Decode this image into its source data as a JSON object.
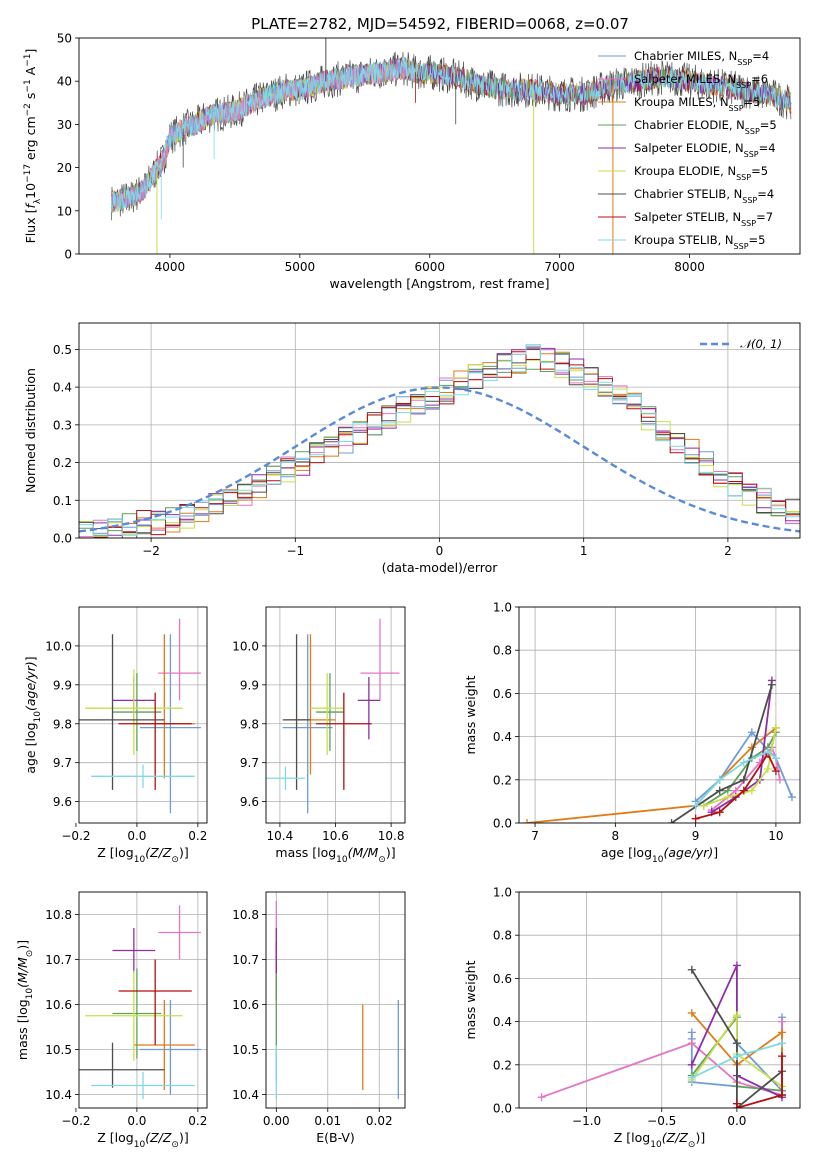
{
  "figure": {
    "title": "PLATE=2782, MJD=54592, FIBERID=0068, z=0.07"
  },
  "colors": {
    "Chabrier MILES": "#6f9bd8",
    "Salpeter MILES": "#e377c2",
    "Kroupa MILES": "#e07b1a",
    "Chabrier ELODIE": "#5f9f5f",
    "Salpeter ELODIE": "#8e2ea6",
    "Kroupa ELODIE": "#c7e04a",
    "Chabrier STELIB": "#4d4d4d",
    "Salpeter STELIB": "#b50f0f",
    "Kroupa STELIB": "#7fd9e6"
  },
  "chart_data": [
    {
      "type": "line",
      "title": "PLATE=2782, MJD=54592, FIBERID=0068, z=0.07",
      "xlabel": "wavelength [Angstrom, rest frame]",
      "ylabel": "Flux [f_λ 10^-17 erg cm^-2 s^-1 A^-1]",
      "xlim": [
        3300,
        8850
      ],
      "ylim": [
        0,
        50
      ],
      "xticks": [
        "4000",
        "5000",
        "6000",
        "7000",
        "8000"
      ],
      "yticks": [
        "0",
        "10",
        "20",
        "30",
        "40",
        "50"
      ],
      "grid": false,
      "legend_position": "top-right",
      "legend": [
        {
          "name": "Chabrier MILES",
          "nssp": "4"
        },
        {
          "name": "Salpeter MILES",
          "nssp": "6"
        },
        {
          "name": "Kroupa MILES",
          "nssp": "5"
        },
        {
          "name": "Chabrier ELODIE",
          "nssp": "5"
        },
        {
          "name": "Salpeter ELODIE",
          "nssp": "4"
        },
        {
          "name": "Kroupa ELODIE",
          "nssp": "5"
        },
        {
          "name": "Chabrier STELIB",
          "nssp": "4"
        },
        {
          "name": "Salpeter STELIB",
          "nssp": "7"
        },
        {
          "name": "Kroupa STELIB",
          "nssp": "5"
        }
      ],
      "continuum": {
        "x": [
          3550,
          3700,
          3800,
          3950,
          4000,
          4100,
          4200,
          4300,
          4500,
          4700,
          4900,
          5000,
          5200,
          5400,
          5600,
          5800,
          5900,
          6000,
          6200,
          6400,
          6600,
          6800,
          7000,
          7200,
          7400,
          7600,
          7800,
          8000,
          8200,
          8400,
          8600,
          8780
        ],
        "y": [
          12,
          13,
          15,
          22,
          27,
          29,
          30,
          32,
          33,
          36,
          38,
          38,
          40,
          41,
          42,
          43,
          42,
          42,
          41,
          39,
          38,
          38,
          37,
          37,
          39,
          40,
          41,
          40,
          39,
          38,
          37,
          35
        ]
      },
      "spikes": [
        {
          "x": 3900,
          "y": 0
        },
        {
          "x": 5200,
          "y": 50
        },
        {
          "x": 6800,
          "y": 0
        },
        {
          "x": 7410,
          "y": 0
        }
      ]
    },
    {
      "type": "line",
      "xlabel": "(data-model)/error",
      "ylabel": "Normed distribution",
      "xlim": [
        -2.5,
        2.5
      ],
      "ylim": [
        0,
        0.57
      ],
      "xticks": [
        "−2",
        "−1",
        "0",
        "1",
        "2"
      ],
      "yticks": [
        "0.0",
        "0.1",
        "0.2",
        "0.3",
        "0.4",
        "0.5"
      ],
      "grid": true,
      "legend_position": "top-right",
      "gaussian_label": "𝒩(0, 1)",
      "hist_bins": {
        "start": -2.5,
        "width": 0.1
      },
      "hist_base": [
        0.02,
        0.02,
        0.03,
        0.03,
        0.04,
        0.04,
        0.05,
        0.06,
        0.07,
        0.09,
        0.1,
        0.12,
        0.14,
        0.16,
        0.18,
        0.2,
        0.22,
        0.24,
        0.26,
        0.28,
        0.3,
        0.32,
        0.34,
        0.35,
        0.37,
        0.39,
        0.41,
        0.43,
        0.45,
        0.46,
        0.47,
        0.48,
        0.47,
        0.46,
        0.44,
        0.42,
        0.4,
        0.38,
        0.35,
        0.32,
        0.29,
        0.26,
        0.23,
        0.2,
        0.17,
        0.14,
        0.12,
        0.1,
        0.08,
        0.07
      ]
    },
    {
      "type": "scatter",
      "xlabel": "Z [log10(Z/Z⊙)]",
      "ylabel": "age [log10(age/yr)]",
      "xlim": [
        -0.19,
        0.23
      ],
      "ylim": [
        9.545,
        10.1
      ],
      "xticks": [
        "−0.2",
        "0.0",
        "0.2"
      ],
      "yticks": [
        "9.6",
        "9.7",
        "9.8",
        "9.9",
        "10.0"
      ],
      "points": [
        {
          "series": "Chabrier MILES",
          "x": 0.11,
          "y": 9.79,
          "xerr": 0.1,
          "yerr": [
            0.22,
            0.24
          ]
        },
        {
          "series": "Salpeter MILES",
          "x": 0.14,
          "y": 9.93,
          "xerr": 0.07,
          "yerr": [
            0.07,
            0.14
          ]
        },
        {
          "series": "Kroupa MILES",
          "x": 0.09,
          "y": 9.8,
          "xerr": 0.1,
          "yerr": [
            0.14,
            0.23
          ]
        },
        {
          "series": "Chabrier ELODIE",
          "x": 0.0,
          "y": 9.83,
          "xerr": 0.08,
          "yerr": [
            0.1,
            0.1
          ]
        },
        {
          "series": "Salpeter ELODIE",
          "x": -0.01,
          "y": 9.86,
          "xerr": 0.07,
          "yerr": [
            0.06,
            0.06
          ]
        },
        {
          "series": "Kroupa ELODIE",
          "x": -0.01,
          "y": 9.84,
          "xerr": 0.16,
          "yerr": [
            0.12,
            0.1
          ]
        },
        {
          "series": "Chabrier STELIB",
          "x": -0.08,
          "y": 9.81,
          "xerr": 0.17,
          "yerr": [
            0.18,
            0.22
          ]
        },
        {
          "series": "Salpeter STELIB",
          "x": 0.06,
          "y": 9.8,
          "xerr": 0.12,
          "yerr": [
            0.17,
            0.08
          ]
        },
        {
          "series": "Kroupa STELIB",
          "x": 0.02,
          "y": 9.665,
          "xerr": 0.17,
          "yerr": [
            0.03,
            0.03
          ]
        }
      ]
    },
    {
      "type": "scatter",
      "xlabel": "mass [log10(M/M⊙)]",
      "xlim": [
        10.35,
        10.85
      ],
      "ylim": [
        9.545,
        10.1
      ],
      "xticks": [
        "10.4",
        "10.6",
        "10.8"
      ],
      "yticks": [
        "9.6",
        "9.7",
        "9.8",
        "9.9",
        "10.0"
      ],
      "points": [
        {
          "series": "Chabrier MILES",
          "x": 10.5,
          "y": 9.79,
          "xerr": 0.09,
          "yerr": [
            0.22,
            0.24
          ]
        },
        {
          "series": "Salpeter MILES",
          "x": 10.76,
          "y": 9.93,
          "xerr": 0.07,
          "yerr": [
            0.07,
            0.14
          ]
        },
        {
          "series": "Kroupa MILES",
          "x": 10.51,
          "y": 9.81,
          "xerr": 0.09,
          "yerr": [
            0.14,
            0.22
          ]
        },
        {
          "series": "Chabrier ELODIE",
          "x": 10.58,
          "y": 9.83,
          "xerr": 0.05,
          "yerr": [
            0.1,
            0.1
          ]
        },
        {
          "series": "Salpeter ELODIE",
          "x": 10.72,
          "y": 9.86,
          "xerr": 0.04,
          "yerr": [
            0.1,
            0.06
          ]
        },
        {
          "series": "Kroupa ELODIE",
          "x": 10.57,
          "y": 9.84,
          "xerr": 0.06,
          "yerr": [
            0.12,
            0.09
          ]
        },
        {
          "series": "Chabrier STELIB",
          "x": 10.46,
          "y": 9.81,
          "xerr": 0.05,
          "yerr": [
            0.18,
            0.22
          ]
        },
        {
          "series": "Salpeter STELIB",
          "x": 10.63,
          "y": 9.8,
          "xerr": 0.1,
          "yerr": [
            0.17,
            0.08
          ]
        },
        {
          "series": "Kroupa STELIB",
          "x": 10.42,
          "y": 9.66,
          "xerr": 0.07,
          "yerr": [
            0.03,
            0.03
          ]
        }
      ]
    },
    {
      "type": "line",
      "xlabel": "age [log10(age/yr)]",
      "ylabel": "mass weight",
      "xlim": [
        6.8,
        10.3
      ],
      "ylim": [
        0,
        1.0
      ],
      "xticks": [
        "7",
        "8",
        "9",
        "10"
      ],
      "yticks": [
        "0.0",
        "0.2",
        "0.4",
        "0.6",
        "0.8",
        "1.0"
      ],
      "grid": true,
      "series": [
        {
          "name": "Chabrier MILES",
          "x": [
            9.0,
            9.3,
            9.7,
            10.0,
            10.2
          ],
          "y": [
            0.1,
            0.2,
            0.42,
            0.3,
            0.12
          ]
        },
        {
          "name": "Salpeter MILES",
          "x": [
            9.2,
            9.5,
            9.8,
            9.95,
            10.0,
            10.05
          ],
          "y": [
            0.06,
            0.15,
            0.28,
            0.35,
            0.3,
            0.2
          ]
        },
        {
          "name": "Kroupa MILES",
          "x": [
            6.9,
            9.0,
            9.3,
            9.7,
            10.0
          ],
          "y": [
            0.0,
            0.08,
            0.2,
            0.35,
            0.44
          ]
        },
        {
          "name": "Chabrier ELODIE",
          "x": [
            9.1,
            9.4,
            9.7,
            9.9,
            10.0
          ],
          "y": [
            0.08,
            0.15,
            0.3,
            0.35,
            0.42
          ]
        },
        {
          "name": "Salpeter ELODIE",
          "x": [
            9.2,
            9.5,
            9.8,
            9.95
          ],
          "y": [
            0.05,
            0.12,
            0.2,
            0.66
          ]
        },
        {
          "name": "Kroupa ELODIE",
          "x": [
            9.1,
            9.4,
            9.7,
            9.9,
            10.0
          ],
          "y": [
            0.08,
            0.12,
            0.15,
            0.25,
            0.44
          ]
        },
        {
          "name": "Chabrier STELIB",
          "x": [
            8.7,
            9.3,
            9.6,
            9.95
          ],
          "y": [
            0.0,
            0.15,
            0.2,
            0.64
          ]
        },
        {
          "name": "Salpeter STELIB",
          "x": [
            9.0,
            9.3,
            9.6,
            9.9,
            10.0
          ],
          "y": [
            0.02,
            0.05,
            0.15,
            0.32,
            0.24
          ]
        },
        {
          "name": "Kroupa STELIB",
          "x": [
            9.0,
            9.3,
            9.6,
            9.9,
            10.0
          ],
          "y": [
            0.08,
            0.2,
            0.28,
            0.33,
            0.3
          ]
        }
      ]
    },
    {
      "type": "scatter",
      "xlabel": "Z [log10(Z/Z⊙)]",
      "ylabel": "mass [log10(M/M⊙)]",
      "xlim": [
        -0.19,
        0.23
      ],
      "ylim": [
        10.37,
        10.85
      ],
      "xticks": [
        "−0.2",
        "0.0",
        "0.2"
      ],
      "yticks": [
        "10.4",
        "10.5",
        "10.6",
        "10.7",
        "10.8"
      ],
      "points": [
        {
          "series": "Chabrier MILES",
          "x": 0.11,
          "y": 10.5,
          "xerr": 0.1,
          "yerr": [
            0.1,
            0.11
          ]
        },
        {
          "series": "Salpeter MILES",
          "x": 0.14,
          "y": 10.76,
          "xerr": 0.07,
          "yerr": [
            0.06,
            0.06
          ]
        },
        {
          "series": "Kroupa MILES",
          "x": 0.09,
          "y": 10.51,
          "xerr": 0.1,
          "yerr": [
            0.1,
            0.1
          ]
        },
        {
          "series": "Chabrier ELODIE",
          "x": 0.0,
          "y": 10.58,
          "xerr": 0.08,
          "yerr": [
            0.1,
            0.1
          ]
        },
        {
          "series": "Salpeter ELODIE",
          "x": -0.01,
          "y": 10.72,
          "xerr": 0.07,
          "yerr": [
            0.05,
            0.05
          ]
        },
        {
          "series": "Kroupa ELODIE",
          "x": -0.01,
          "y": 10.575,
          "xerr": 0.16,
          "yerr": [
            0.1,
            0.1
          ]
        },
        {
          "series": "Chabrier STELIB",
          "x": -0.08,
          "y": 10.455,
          "xerr": 0.17,
          "yerr": [
            0.04,
            0.06
          ]
        },
        {
          "series": "Salpeter STELIB",
          "x": 0.06,
          "y": 10.63,
          "xerr": 0.12,
          "yerr": [
            0.12,
            0.07
          ]
        },
        {
          "series": "Kroupa STELIB",
          "x": 0.02,
          "y": 10.42,
          "xerr": 0.17,
          "yerr": [
            0.03,
            0.03
          ]
        }
      ]
    },
    {
      "type": "scatter",
      "xlabel": "E(B-V)",
      "xlim": [
        -0.002,
        0.025
      ],
      "ylim": [
        10.37,
        10.85
      ],
      "xticks": [
        "0.00",
        "0.01",
        "0.02"
      ],
      "yticks": [
        "10.4",
        "10.5",
        "10.6",
        "10.7",
        "10.8"
      ],
      "points": [
        {
          "series": "Chabrier MILES",
          "x": 0.0237,
          "y": 10.5,
          "yerr": [
            0.11,
            0.11
          ]
        },
        {
          "series": "Kroupa MILES",
          "x": 0.0168,
          "y": 10.5,
          "yerr": [
            0.09,
            0.1
          ]
        },
        {
          "series": "Salpeter MILES",
          "x": 0.0,
          "y": 10.76,
          "yerr": [
            0.06,
            0.07
          ]
        },
        {
          "series": "Salpeter STELIB",
          "x": 0.0,
          "y": 10.67,
          "yerr": [
            0.06,
            0.07
          ]
        },
        {
          "series": "Salpeter ELODIE",
          "x": 0.0,
          "y": 10.72,
          "yerr": [
            0.05,
            0.05
          ]
        },
        {
          "series": "Chabrier ELODIE",
          "x": 0.0,
          "y": 10.55,
          "yerr": [
            0.12,
            0.12
          ]
        },
        {
          "series": "Kroupa STELIB",
          "x": 0.0,
          "y": 10.45,
          "yerr": [
            0.06,
            0.06
          ]
        }
      ]
    },
    {
      "type": "line",
      "xlabel": "Z [log10(Z/Z⊙)]",
      "ylabel": "mass weight",
      "xlim": [
        -1.45,
        0.42
      ],
      "ylim": [
        0,
        1.0
      ],
      "xticks": [
        "−1.0",
        "−0.5",
        "0.0"
      ],
      "yticks": [
        "0.0",
        "0.2",
        "0.4",
        "0.6",
        "0.8",
        "1.0"
      ],
      "grid": true,
      "series": [
        {
          "name": "Chabrier MILES",
          "x": [
            -0.3,
            -0.3,
            -0.3,
            0.0,
            0.0,
            0.3,
            0.3
          ],
          "y": [
            0.35,
            0.32,
            0.12,
            0.1,
            0.3,
            0.08,
            0.42
          ]
        },
        {
          "name": "Salpeter MILES",
          "x": [
            -1.3,
            -0.3,
            0.0,
            0.3,
            0.3
          ],
          "y": [
            0.05,
            0.3,
            0.12,
            0.06,
            0.4
          ]
        },
        {
          "name": "Kroupa MILES",
          "x": [
            -0.3,
            0.0,
            0.3,
            0.3
          ],
          "y": [
            0.44,
            0.2,
            0.35,
            0.06
          ]
        },
        {
          "name": "Chabrier ELODIE",
          "x": [
            -0.3,
            0.0,
            0.0,
            0.3
          ],
          "y": [
            0.15,
            0.42,
            0.1,
            0.08
          ]
        },
        {
          "name": "Salpeter ELODIE",
          "x": [
            -0.3,
            0.0,
            0.0,
            0.3
          ],
          "y": [
            0.2,
            0.66,
            0.15,
            0.05
          ]
        },
        {
          "name": "Kroupa ELODIE",
          "x": [
            -0.3,
            0.0,
            0.0,
            0.3
          ],
          "y": [
            0.13,
            0.43,
            0.25,
            0.1
          ]
        },
        {
          "name": "Chabrier STELIB",
          "x": [
            -0.3,
            0.0,
            0.0,
            0.3
          ],
          "y": [
            0.64,
            0.3,
            0.0,
            0.17
          ]
        },
        {
          "name": "Salpeter STELIB",
          "x": [
            0.0,
            0.0,
            0.3,
            0.3
          ],
          "y": [
            0.02,
            0.0,
            0.06,
            0.24
          ]
        },
        {
          "name": "Kroupa STELIB",
          "x": [
            -0.3,
            0.0,
            0.3
          ],
          "y": [
            0.14,
            0.24,
            0.3
          ]
        }
      ]
    }
  ]
}
